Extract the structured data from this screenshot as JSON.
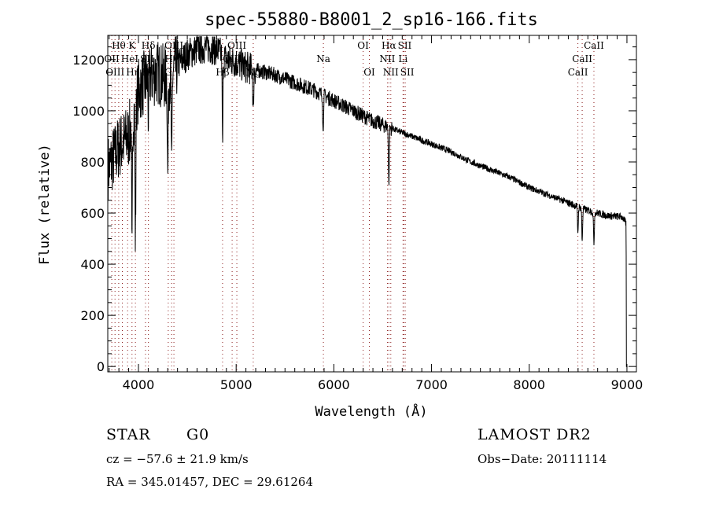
{
  "chart_data": {
    "type": "line",
    "title": "spec-55880-B8001_2_sp16-166.fits",
    "xlabel": "Wavelength (Å)",
    "ylabel": "Flux (relative)",
    "xlim": [
      3686,
      9097
    ],
    "ylim": [
      -21,
      1295
    ],
    "xticks": [
      4000,
      5000,
      6000,
      7000,
      8000,
      9000
    ],
    "yticks": [
      0,
      200,
      400,
      600,
      800,
      1000,
      1200
    ],
    "grid": false,
    "series": [
      {
        "name": "spectrum",
        "continuum_x": [
          3700,
          3800,
          3900,
          4000,
          4100,
          4200,
          4300,
          4400,
          4500,
          4600,
          4700,
          4800,
          4900,
          5000,
          5100,
          5200,
          5400,
          5600,
          5800,
          6000,
          6200,
          6400,
          6600,
          6800,
          7000,
          7200,
          7400,
          7600,
          7800,
          8000,
          8200,
          8400,
          8600,
          8800,
          8950,
          8990,
          9000
        ],
        "continuum_y": [
          780,
          860,
          900,
          1080,
          1130,
          1150,
          1120,
          1180,
          1220,
          1240,
          1250,
          1240,
          1200,
          1190,
          1170,
          1160,
          1140,
          1110,
          1080,
          1040,
          1000,
          960,
          930,
          900,
          870,
          840,
          800,
          770,
          740,
          700,
          670,
          640,
          610,
          590,
          585,
          560,
          0
        ],
        "absorption_lines": [
          {
            "wavelength": 3934,
            "depth": 560
          },
          {
            "wavelength": 3969,
            "depth": 540
          },
          {
            "wavelength": 4102,
            "depth": 150
          },
          {
            "wavelength": 4300,
            "depth": 380
          },
          {
            "wavelength": 4340,
            "depth": 420
          },
          {
            "wavelength": 4861,
            "depth": 360
          },
          {
            "wavelength": 5175,
            "depth": 180
          },
          {
            "wavelength": 5890,
            "depth": 150
          },
          {
            "wavelength": 6563,
            "depth": 230
          },
          {
            "wavelength": 8498,
            "depth": 100
          },
          {
            "wavelength": 8542,
            "depth": 130
          },
          {
            "wavelength": 8662,
            "depth": 130
          }
        ]
      }
    ],
    "line_markers": [
      {
        "label": "Hθ",
        "wavelength": 3798,
        "row": 1
      },
      {
        "label": "K",
        "wavelength": 3934,
        "row": 1
      },
      {
        "label": "Hδ",
        "wavelength": 4102,
        "row": 1
      },
      {
        "label": "OIII",
        "wavelength": 4363,
        "row": 1
      },
      {
        "label": "OIII",
        "wavelength": 5007,
        "row": 1
      },
      {
        "label": "OI",
        "wavelength": 6300,
        "row": 1
      },
      {
        "label": "Hα",
        "wavelength": 6563,
        "row": 1
      },
      {
        "label": "SII",
        "wavelength": 6716,
        "row": 1
      },
      {
        "label": "CaII",
        "wavelength": 8662,
        "row": 1
      },
      {
        "label": "OII",
        "wavelength": 3727,
        "row": 2
      },
      {
        "label": "HeI",
        "wavelength": 3889,
        "row": 2
      },
      {
        "label": "SII",
        "wavelength": 4072,
        "row": 2
      },
      {
        "label": "Hγ",
        "wavelength": 4340,
        "row": 2
      },
      {
        "label": "OIII",
        "wavelength": 4959,
        "row": 2
      },
      {
        "label": "Na",
        "wavelength": 5893,
        "row": 2
      },
      {
        "label": "NII",
        "wavelength": 6548,
        "row": 2
      },
      {
        "label": "Li",
        "wavelength": 6708,
        "row": 2
      },
      {
        "label": "CaII",
        "wavelength": 8542,
        "row": 2
      },
      {
        "label": "OIII",
        "wavelength": 3760,
        "row": 3
      },
      {
        "label": "Hη",
        "wavelength": 3835,
        "row": 3
      },
      {
        "label": "H",
        "wavelength": 3969,
        "row": 3
      },
      {
        "label": "G",
        "wavelength": 4305,
        "row": 3
      },
      {
        "label": "Hβ",
        "wavelength": 4861,
        "row": 3
      },
      {
        "label": "Mg",
        "wavelength": 5175,
        "row": 3
      },
      {
        "label": "OI",
        "wavelength": 6363,
        "row": 3
      },
      {
        "label": "NII",
        "wavelength": 6583,
        "row": 3
      },
      {
        "label": "SII",
        "wavelength": 6731,
        "row": 3
      },
      {
        "label": "CaII",
        "wavelength": 8498,
        "row": 3
      }
    ],
    "colors": {
      "spectrum": "#000000",
      "markers": "#8b1a1a"
    }
  },
  "info": {
    "class": "STAR",
    "subclass": "G0",
    "survey": "LAMOST DR2",
    "redshift": "cz = −57.6 ± 21.9 km/s",
    "obs_date": "Obs−Date: 20111114",
    "coords": "RA = 345.01457, DEC =  29.61264"
  }
}
